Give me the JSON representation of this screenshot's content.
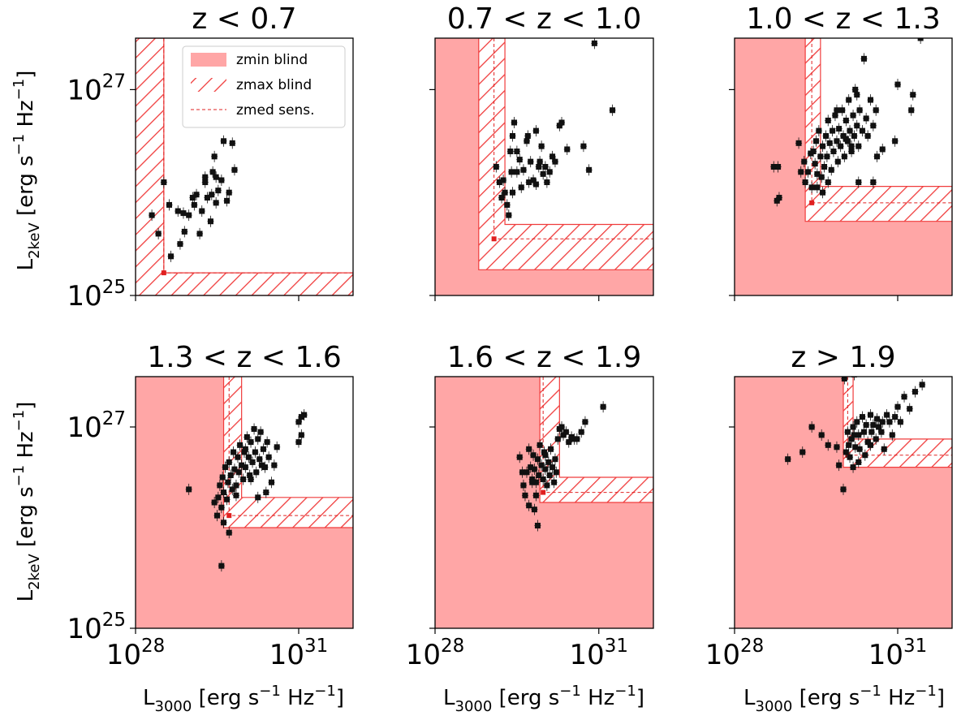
{
  "colors": {
    "zmin_fill": "#ffa6a6",
    "zmax_hatch": "#f03c3c",
    "zmed_line": "#e02020",
    "point": "#111111"
  },
  "chart_data": [
    {
      "type": "scatter",
      "title": "z < 0.7",
      "xscale": "log",
      "yscale": "log",
      "xlim_log10": [
        28,
        32
      ],
      "ylim_log10": [
        25,
        27.5
      ],
      "grid": false,
      "legend": {
        "position": "top-right",
        "entries": [
          {
            "label": "zmin blind",
            "style": "filled"
          },
          {
            "label": "zmax blind",
            "style": "hatched"
          },
          {
            "label": "zmed sens.",
            "style": "dashed"
          }
        ]
      },
      "zmin_blind": null,
      "zmax_blind": {
        "x_log10": 28.52,
        "y_log10": 25.22
      },
      "zmed_sens": {
        "x_log10": 28.52,
        "y_log10": 25.22
      },
      "points_log10": [
        [
          28.3,
          25.78
        ],
        [
          28.42,
          25.6
        ],
        [
          28.52,
          26.1
        ],
        [
          28.62,
          25.88
        ],
        [
          28.65,
          25.38
        ],
        [
          28.78,
          25.82
        ],
        [
          28.82,
          25.5
        ],
        [
          28.88,
          25.8
        ],
        [
          28.98,
          25.78
        ],
        [
          29.08,
          25.88
        ],
        [
          29.12,
          25.98
        ],
        [
          29.18,
          25.6
        ],
        [
          29.22,
          25.82
        ],
        [
          29.28,
          26.1
        ],
        [
          29.32,
          25.95
        ],
        [
          29.38,
          25.72
        ],
        [
          29.42,
          26.2
        ],
        [
          29.48,
          25.9
        ],
        [
          29.52,
          26.02
        ],
        [
          29.58,
          26.12
        ],
        [
          29.62,
          26.5
        ],
        [
          29.68,
          25.92
        ],
        [
          29.72,
          26.0
        ],
        [
          29.82,
          26.22
        ],
        [
          29.78,
          26.48
        ],
        [
          29.28,
          26.15
        ],
        [
          29.45,
          26.35
        ],
        [
          29.05,
          25.95
        ],
        [
          28.9,
          25.62
        ],
        [
          29.48,
          26.15
        ],
        [
          29.4,
          25.98
        ]
      ]
    },
    {
      "type": "scatter",
      "title": "0.7 < z < 1.0",
      "xscale": "log",
      "yscale": "log",
      "xlim_log10": [
        28,
        32
      ],
      "ylim_log10": [
        25,
        27.5
      ],
      "grid": false,
      "zmin_blind": {
        "x_log10": 28.8,
        "y_log10": 25.25
      },
      "zmax_blind": {
        "x_log10": 29.28,
        "y_log10": 25.69
      },
      "zmed_sens": {
        "x_log10": 29.08,
        "y_log10": 25.55
      },
      "points_log10": [
        [
          29.12,
          26.25
        ],
        [
          29.18,
          26.1
        ],
        [
          29.22,
          25.95
        ],
        [
          29.25,
          26.12
        ],
        [
          29.28,
          26.0
        ],
        [
          29.32,
          25.88
        ],
        [
          29.35,
          25.78
        ],
        [
          29.38,
          26.4
        ],
        [
          29.4,
          26.2
        ],
        [
          29.42,
          26.55
        ],
        [
          29.45,
          26.68
        ],
        [
          29.5,
          26.2
        ],
        [
          29.55,
          26.32
        ],
        [
          29.58,
          26.05
        ],
        [
          29.62,
          26.22
        ],
        [
          29.68,
          26.5
        ],
        [
          29.72,
          26.1
        ],
        [
          29.75,
          26.3
        ],
        [
          29.8,
          26.12
        ],
        [
          29.85,
          26.6
        ],
        [
          29.9,
          26.25
        ],
        [
          29.92,
          26.3
        ],
        [
          29.95,
          26.45
        ],
        [
          29.98,
          26.18
        ],
        [
          30.02,
          26.25
        ],
        [
          30.05,
          26.1
        ],
        [
          30.1,
          26.2
        ],
        [
          30.15,
          26.35
        ],
        [
          30.2,
          26.3
        ],
        [
          30.28,
          26.65
        ],
        [
          30.32,
          26.68
        ],
        [
          30.42,
          26.42
        ],
        [
          29.7,
          26.55
        ],
        [
          30.72,
          26.45
        ],
        [
          30.82,
          26.22
        ],
        [
          31.25,
          26.8
        ],
        [
          30.92,
          27.45
        ],
        [
          29.5,
          26.4
        ],
        [
          29.85,
          26.08
        ],
        [
          29.42,
          26.0
        ]
      ]
    },
    {
      "type": "scatter",
      "title": "1.0 < z < 1.3",
      "xscale": "log",
      "yscale": "log",
      "xlim_log10": [
        28,
        32
      ],
      "ylim_log10": [
        25,
        27.5
      ],
      "grid": false,
      "zmin_blind": {
        "x_log10": 29.3,
        "y_log10": 25.72
      },
      "zmax_blind": {
        "x_log10": 29.58,
        "y_log10": 26.06
      },
      "zmed_sens": {
        "x_log10": 29.42,
        "y_log10": 25.9
      },
      "points_log10": [
        [
          28.72,
          26.25
        ],
        [
          28.8,
          26.25
        ],
        [
          28.82,
          25.95
        ],
        [
          28.78,
          25.92
        ],
        [
          29.18,
          26.48
        ],
        [
          29.22,
          26.2
        ],
        [
          29.28,
          26.3
        ],
        [
          29.3,
          26.1
        ],
        [
          29.35,
          26.2
        ],
        [
          29.4,
          26.38
        ],
        [
          29.42,
          26.05
        ],
        [
          29.45,
          26.4
        ],
        [
          29.48,
          26.28
        ],
        [
          29.5,
          26.5
        ],
        [
          29.52,
          26.18
        ],
        [
          29.55,
          26.6
        ],
        [
          29.58,
          26.35
        ],
        [
          29.6,
          26.15
        ],
        [
          29.62,
          26.45
        ],
        [
          29.65,
          26.25
        ],
        [
          29.68,
          26.55
        ],
        [
          29.7,
          26.35
        ],
        [
          29.72,
          26.7
        ],
        [
          29.75,
          26.48
        ],
        [
          29.78,
          26.22
        ],
        [
          29.8,
          26.6
        ],
        [
          29.82,
          26.4
        ],
        [
          29.85,
          26.75
        ],
        [
          29.88,
          26.5
        ],
        [
          29.9,
          26.3
        ],
        [
          29.92,
          26.62
        ],
        [
          29.95,
          26.45
        ],
        [
          29.98,
          26.8
        ],
        [
          30.0,
          26.55
        ],
        [
          30.02,
          26.35
        ],
        [
          30.05,
          26.7
        ],
        [
          30.08,
          26.5
        ],
        [
          30.1,
          26.9
        ],
        [
          30.12,
          26.6
        ],
        [
          30.15,
          26.4
        ],
        [
          30.18,
          26.75
        ],
        [
          30.2,
          26.55
        ],
        [
          30.22,
          27.0
        ],
        [
          30.25,
          26.65
        ],
        [
          30.28,
          26.45
        ],
        [
          30.3,
          26.8
        ],
        [
          30.35,
          26.6
        ],
        [
          30.38,
          27.3
        ],
        [
          30.42,
          26.72
        ],
        [
          30.45,
          26.55
        ],
        [
          30.5,
          26.9
        ],
        [
          30.55,
          26.65
        ],
        [
          30.6,
          26.8
        ],
        [
          30.62,
          26.35
        ],
        [
          30.28,
          26.1
        ],
        [
          30.55,
          26.1
        ],
        [
          30.72,
          26.42
        ],
        [
          31.25,
          26.8
        ],
        [
          31.28,
          26.95
        ],
        [
          31.42,
          27.5
        ],
        [
          31.0,
          27.05
        ],
        [
          30.95,
          26.5
        ],
        [
          29.62,
          26.0
        ],
        [
          29.52,
          26.05
        ],
        [
          29.72,
          26.1
        ],
        [
          30.15,
          26.45
        ],
        [
          30.05,
          26.52
        ],
        [
          29.88,
          26.8
        ],
        [
          30.25,
          26.95
        ]
      ]
    },
    {
      "type": "scatter",
      "title": "1.3 < z < 1.6",
      "xscale": "log",
      "yscale": "log",
      "xlim_log10": [
        28,
        32
      ],
      "ylim_log10": [
        25,
        27.5
      ],
      "grid": false,
      "zmin_blind": {
        "x_log10": 29.62,
        "y_log10": 26.0
      },
      "zmax_blind": {
        "x_log10": 29.95,
        "y_log10": 26.3
      },
      "zmed_sens": {
        "x_log10": 29.72,
        "y_log10": 26.12
      },
      "points_log10": [
        [
          28.98,
          26.38
        ],
        [
          29.45,
          26.25
        ],
        [
          29.5,
          26.12
        ],
        [
          29.52,
          26.3
        ],
        [
          29.55,
          26.42
        ],
        [
          29.58,
          26.2
        ],
        [
          29.6,
          26.5
        ],
        [
          29.62,
          26.35
        ],
        [
          29.65,
          26.6
        ],
        [
          29.68,
          26.28
        ],
        [
          29.7,
          26.45
        ],
        [
          29.72,
          26.65
        ],
        [
          29.75,
          26.52
        ],
        [
          29.78,
          26.38
        ],
        [
          29.8,
          26.75
        ],
        [
          29.82,
          26.58
        ],
        [
          29.85,
          26.42
        ],
        [
          29.88,
          26.7
        ],
        [
          29.9,
          26.55
        ],
        [
          29.92,
          26.82
        ],
        [
          29.95,
          26.62
        ],
        [
          29.98,
          26.48
        ],
        [
          30.0,
          26.75
        ],
        [
          30.02,
          26.6
        ],
        [
          30.05,
          26.9
        ],
        [
          30.08,
          26.7
        ],
        [
          30.1,
          26.52
        ],
        [
          30.12,
          26.85
        ],
        [
          30.15,
          26.65
        ],
        [
          30.18,
          26.98
        ],
        [
          30.2,
          26.75
        ],
        [
          30.22,
          26.55
        ],
        [
          30.25,
          26.88
        ],
        [
          30.28,
          26.68
        ],
        [
          30.3,
          26.95
        ],
        [
          30.35,
          26.78
        ],
        [
          30.38,
          26.6
        ],
        [
          30.42,
          26.85
        ],
        [
          30.45,
          26.7
        ],
        [
          30.5,
          26.45
        ],
        [
          30.55,
          26.62
        ],
        [
          30.6,
          26.8
        ],
        [
          30.25,
          26.3
        ],
        [
          30.4,
          26.35
        ],
        [
          31.0,
          27.05
        ],
        [
          31.05,
          27.1
        ],
        [
          31.1,
          27.12
        ],
        [
          31.05,
          26.92
        ],
        [
          31.0,
          26.85
        ],
        [
          29.58,
          25.62
        ],
        [
          29.72,
          25.95
        ],
        [
          29.62,
          26.05
        ],
        [
          29.85,
          26.32
        ],
        [
          30.12,
          26.48
        ],
        [
          30.02,
          26.78
        ],
        [
          30.32,
          26.62
        ]
      ]
    },
    {
      "type": "scatter",
      "title": "1.6 < z < 1.9",
      "xscale": "log",
      "yscale": "log",
      "xlim_log10": [
        28,
        32
      ],
      "ylim_log10": [
        25,
        27.5
      ],
      "grid": false,
      "zmin_blind": {
        "x_log10": 29.92,
        "y_log10": 26.25
      },
      "zmax_blind": {
        "x_log10": 30.28,
        "y_log10": 26.5
      },
      "zmed_sens": {
        "x_log10": 29.98,
        "y_log10": 26.35
      },
      "points_log10": [
        [
          29.55,
          26.7
        ],
        [
          29.6,
          26.55
        ],
        [
          29.62,
          26.42
        ],
        [
          29.65,
          26.32
        ],
        [
          29.68,
          26.55
        ],
        [
          29.72,
          26.78
        ],
        [
          29.75,
          26.6
        ],
        [
          29.78,
          26.48
        ],
        [
          29.8,
          26.72
        ],
        [
          29.82,
          26.58
        ],
        [
          29.85,
          26.45
        ],
        [
          29.88,
          26.68
        ],
        [
          29.9,
          26.52
        ],
        [
          29.92,
          26.82
        ],
        [
          29.95,
          26.62
        ],
        [
          29.98,
          26.48
        ],
        [
          30.0,
          26.75
        ],
        [
          30.02,
          26.58
        ],
        [
          30.05,
          26.42
        ],
        [
          30.08,
          26.65
        ],
        [
          30.1,
          26.52
        ],
        [
          30.12,
          26.78
        ],
        [
          30.15,
          26.6
        ],
        [
          30.18,
          26.45
        ],
        [
          30.2,
          26.68
        ],
        [
          30.22,
          26.55
        ],
        [
          30.25,
          26.88
        ],
        [
          30.28,
          26.98
        ],
        [
          30.32,
          27.0
        ],
        [
          30.35,
          26.92
        ],
        [
          30.4,
          26.95
        ],
        [
          30.45,
          26.85
        ],
        [
          30.5,
          26.9
        ],
        [
          30.55,
          26.88
        ],
        [
          30.6,
          26.88
        ],
        [
          30.68,
          26.95
        ],
        [
          30.75,
          27.05
        ],
        [
          31.08,
          27.2
        ],
        [
          29.72,
          26.22
        ],
        [
          29.85,
          26.32
        ],
        [
          29.82,
          26.18
        ],
        [
          29.88,
          26.02
        ],
        [
          29.78,
          26.45
        ],
        [
          30.02,
          26.72
        ]
      ]
    },
    {
      "type": "scatter",
      "title": "z > 1.9",
      "xscale": "log",
      "yscale": "log",
      "xlim_log10": [
        28,
        32
      ],
      "ylim_log10": [
        25,
        27.5
      ],
      "grid": false,
      "zmin_blind": {
        "x_log10": 30.0,
        "y_log10": 26.6
      },
      "zmax_blind": {
        "x_log10": 30.18,
        "y_log10": 26.88
      },
      "zmed_sens": {
        "x_log10": 30.08,
        "y_log10": 26.72
      },
      "points_log10": [
        [
          28.98,
          26.68
        ],
        [
          29.25,
          26.75
        ],
        [
          29.42,
          27.0
        ],
        [
          29.6,
          26.92
        ],
        [
          29.72,
          26.82
        ],
        [
          29.88,
          26.8
        ],
        [
          29.92,
          26.62
        ],
        [
          30.0,
          26.38
        ],
        [
          30.05,
          26.75
        ],
        [
          30.08,
          26.95
        ],
        [
          30.1,
          26.82
        ],
        [
          30.12,
          26.7
        ],
        [
          30.15,
          26.88
        ],
        [
          30.18,
          27.0
        ],
        [
          30.2,
          26.92
        ],
        [
          30.22,
          26.8
        ],
        [
          30.25,
          27.05
        ],
        [
          30.28,
          26.92
        ],
        [
          30.3,
          26.78
        ],
        [
          30.35,
          27.1
        ],
        [
          30.38,
          26.95
        ],
        [
          30.42,
          27.02
        ],
        [
          30.45,
          26.85
        ],
        [
          30.5,
          27.12
        ],
        [
          30.52,
          26.95
        ],
        [
          30.55,
          27.02
        ],
        [
          30.6,
          26.88
        ],
        [
          30.62,
          27.08
        ],
        [
          30.65,
          27.0
        ],
        [
          30.7,
          26.95
        ],
        [
          30.72,
          27.05
        ],
        [
          30.75,
          26.78
        ],
        [
          30.8,
          27.12
        ],
        [
          30.85,
          27.05
        ],
        [
          30.9,
          26.92
        ],
        [
          30.95,
          27.1
        ],
        [
          31.0,
          27.2
        ],
        [
          31.05,
          27.05
        ],
        [
          31.12,
          27.3
        ],
        [
          31.22,
          27.18
        ],
        [
          31.32,
          27.35
        ],
        [
          31.45,
          27.42
        ],
        [
          30.2,
          27.52
        ],
        [
          30.02,
          27.48
        ],
        [
          30.4,
          26.72
        ],
        [
          30.28,
          26.65
        ],
        [
          30.18,
          26.6
        ],
        [
          30.5,
          26.82
        ]
      ]
    }
  ],
  "axes": {
    "ylabel_main": "L",
    "ylabel_sub": "2keV",
    "ylabel_rest": " [erg s",
    "ylabel_exp1": "−1",
    "ylabel_hz": " Hz",
    "ylabel_exp2": "−1",
    "ylabel_close": "]",
    "xlabel_main": "L",
    "xlabel_sub": "3000",
    "xlabel_rest": " [erg s",
    "xlabel_exp1": "−1",
    "xlabel_hz": " Hz",
    "xlabel_exp2": "−1",
    "xlabel_close": "]",
    "ytick_base": "10",
    "ytick_exps": [
      "27",
      "25"
    ],
    "xtick_base": "10",
    "xtick_exps": [
      "28",
      "31"
    ]
  }
}
